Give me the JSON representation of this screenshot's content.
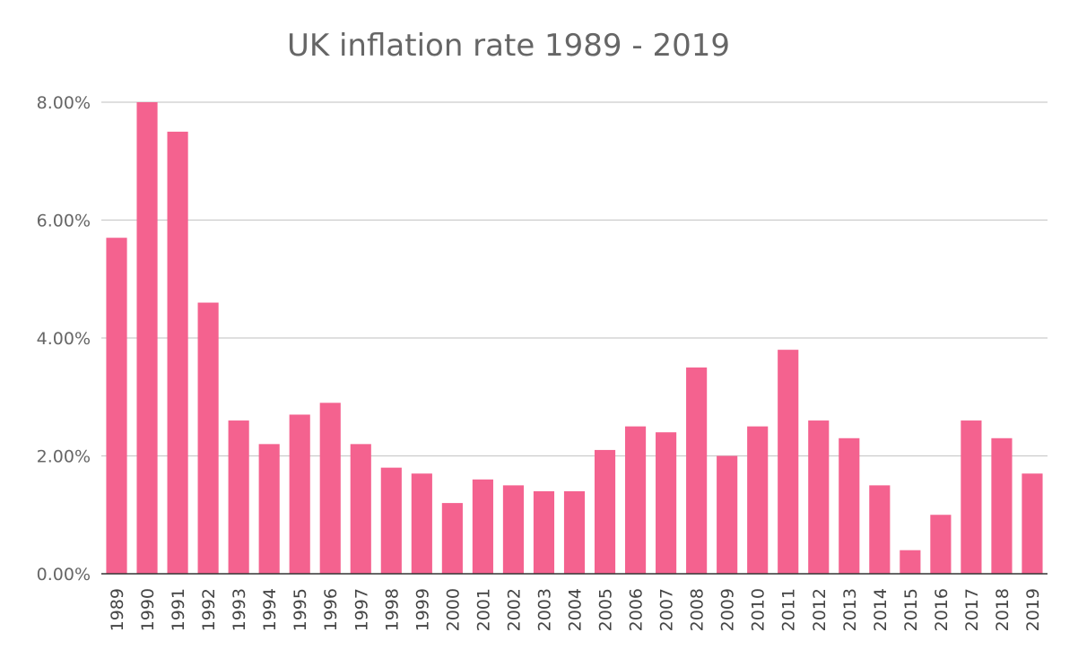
{
  "chart_data": {
    "type": "bar",
    "title": "UK inflation rate 1989 - 2019",
    "xlabel": "",
    "ylabel": "",
    "ylim": [
      0,
      8
    ],
    "yticks": [
      0,
      2,
      4,
      6,
      8
    ],
    "ytick_labels": [
      "0.00%",
      "2.00%",
      "4.00%",
      "6.00%",
      "8.00%"
    ],
    "grid": true,
    "legend": "none",
    "bar_color": "#f4628f",
    "categories": [
      "1989",
      "1990",
      "1991",
      "1992",
      "1993",
      "1994",
      "1995",
      "1996",
      "1997",
      "1998",
      "1999",
      "2000",
      "2001",
      "2002",
      "2003",
      "2004",
      "2005",
      "2006",
      "2007",
      "2008",
      "2009",
      "2010",
      "2011",
      "2012",
      "2013",
      "2014",
      "2015",
      "2016",
      "2017",
      "2018",
      "2019"
    ],
    "values": [
      5.7,
      8.0,
      7.5,
      4.6,
      2.6,
      2.2,
      2.7,
      2.9,
      2.2,
      1.8,
      1.7,
      1.2,
      1.6,
      1.5,
      1.4,
      1.4,
      2.1,
      2.5,
      2.4,
      3.5,
      2.0,
      2.5,
      3.8,
      2.6,
      2.3,
      1.5,
      0.4,
      1.0,
      2.6,
      2.3,
      1.7
    ]
  }
}
